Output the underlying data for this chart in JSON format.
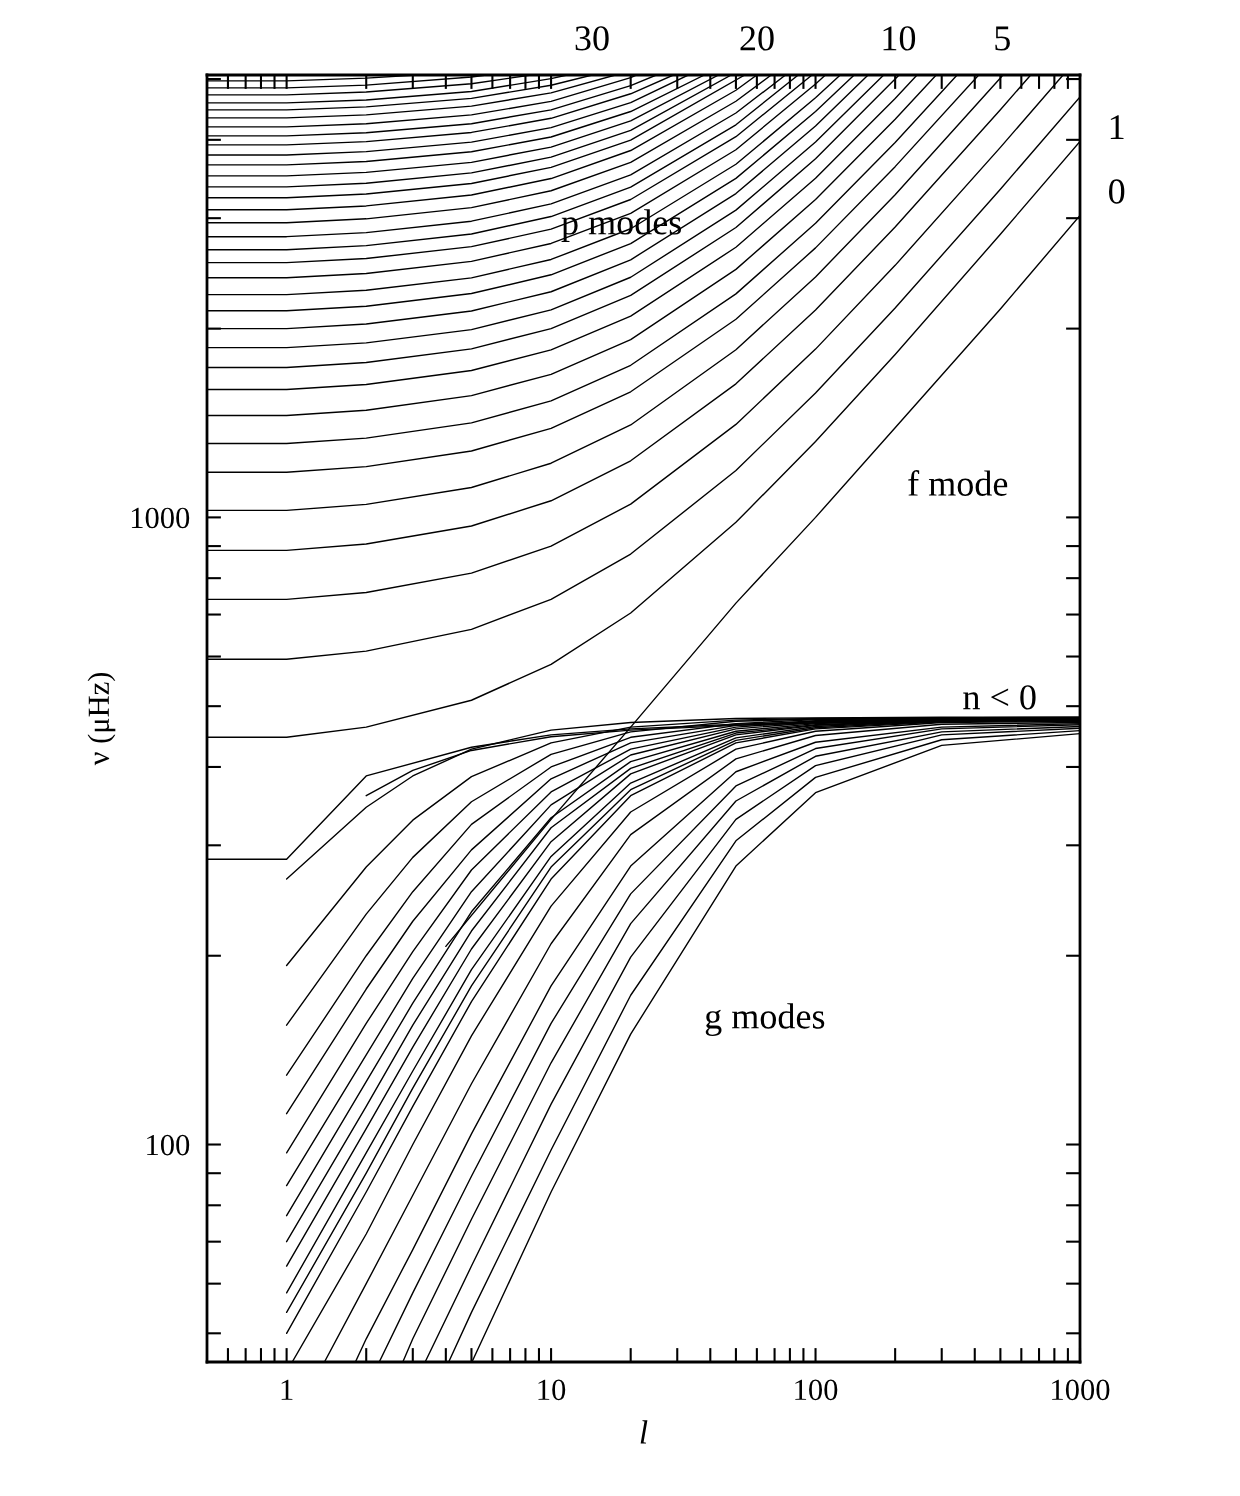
{
  "chart_data": {
    "type": "line",
    "xlabel": "l",
    "ylabel": "ν (μHz)",
    "log": "xy",
    "xlim": [
      0.5,
      1000
    ],
    "ylim": [
      45,
      5075
    ],
    "xticks": [
      {
        "value": 0.6,
        "label": null
      },
      {
        "value": 0.7,
        "label": null
      },
      {
        "value": 0.8,
        "label": null
      },
      {
        "value": 0.9,
        "label": null
      },
      1,
      {
        "value": 2,
        "label": null
      },
      {
        "value": 3,
        "label": null
      },
      {
        "value": 4,
        "label": null
      },
      {
        "value": 5,
        "label": null
      },
      {
        "value": 6,
        "label": null
      },
      {
        "value": 7,
        "label": null
      },
      {
        "value": 8,
        "label": null
      },
      {
        "value": 9,
        "label": null
      },
      10,
      {
        "value": 20,
        "label": null
      },
      {
        "value": 30,
        "label": null
      },
      {
        "value": 40,
        "label": null
      },
      {
        "value": 50,
        "label": null
      },
      {
        "value": 60,
        "label": null
      },
      {
        "value": 70,
        "label": null
      },
      {
        "value": 80,
        "label": null
      },
      {
        "value": 90,
        "label": null
      },
      100,
      {
        "value": 200,
        "label": null
      },
      {
        "value": 300,
        "label": null
      },
      {
        "value": 400,
        "label": null
      },
      {
        "value": 500,
        "label": null
      },
      {
        "value": 600,
        "label": null
      },
      {
        "value": 700,
        "label": null
      },
      {
        "value": 800,
        "label": null
      },
      {
        "value": 900,
        "label": null
      },
      1000
    ],
    "yticks": [
      {
        "value": 50,
        "label": null
      },
      {
        "value": 60,
        "label": null
      },
      {
        "value": 70,
        "label": null
      },
      {
        "value": 80,
        "label": null
      },
      {
        "value": 90,
        "label": null
      },
      100,
      {
        "value": 200,
        "label": null
      },
      {
        "value": 300,
        "label": null
      },
      {
        "value": 400,
        "label": null
      },
      {
        "value": 500,
        "label": null
      },
      {
        "value": 600,
        "label": null
      },
      {
        "value": 700,
        "label": null
      },
      {
        "value": 800,
        "label": null
      },
      {
        "value": 900,
        "label": null
      },
      1000,
      {
        "value": 2000,
        "label": null
      },
      {
        "value": 3000,
        "label": null
      },
      {
        "value": 4000,
        "label": null
      },
      {
        "value": 5000,
        "label": null
      }
    ],
    "annotations": [
      "p modes",
      "f mode",
      "g modes",
      "n < 0",
      "30",
      "20",
      "10",
      "5",
      "1",
      "0"
    ],
    "series": [
      {
        "color": "#000000",
        "x": [
          0.5,
          1,
          2,
          5,
          10,
          20,
          50,
          100,
          200,
          500,
          1000
        ],
        "values": [
          446,
          446,
          463,
          511,
          583,
          704,
          982,
          1321,
          1819,
          2828,
          3977
        ]
      },
      {
        "color": "#000000",
        "x": [
          0.5,
          1,
          2,
          5,
          10,
          20,
          50,
          100,
          200,
          500,
          1000
        ],
        "values": [
          594,
          594,
          612,
          663,
          740,
          874,
          1188,
          1579,
          2157,
          3337,
          4684
        ]
      },
      {
        "color": "#000000",
        "x": [
          0.5,
          1,
          2,
          5,
          10,
          20,
          50,
          100,
          200,
          500,
          863
        ],
        "values": [
          740,
          740,
          759,
          815,
          900,
          1050,
          1407,
          1855,
          2523,
          3891,
          5075
        ]
      },
      {
        "color": "#000000",
        "x": [
          0.5,
          1,
          2,
          5,
          10,
          20,
          50,
          100,
          200,
          500,
          651
        ],
        "values": [
          886,
          886,
          907,
          969,
          1063,
          1231,
          1633,
          2142,
          2904,
          4467,
          5075
        ]
      },
      {
        "color": "#000000",
        "x": [
          0.5,
          1,
          2,
          5,
          10,
          20,
          50,
          100,
          200,
          500,
          511
        ],
        "values": [
          1026,
          1026,
          1049,
          1116,
          1220,
          1404,
          1851,
          2418,
          3269,
          5020,
          5075
        ]
      },
      {
        "color": "#000000",
        "x": [
          0.5,
          1,
          2,
          5,
          10,
          20,
          50,
          100,
          200,
          414
        ],
        "values": [
          1180,
          1180,
          1205,
          1276,
          1387,
          1586,
          2070,
          2690,
          3625,
          5075
        ]
      },
      {
        "color": "#000000",
        "x": [
          0.5,
          1,
          2,
          5,
          10,
          20,
          50,
          100,
          200,
          343
        ],
        "values": [
          1312,
          1312,
          1338,
          1415,
          1534,
          1748,
          2272,
          2945,
          3962,
          5075
        ]
      },
      {
        "color": "#000000",
        "x": [
          0.5,
          1,
          2,
          5,
          10,
          20,
          50,
          100,
          200,
          286
        ],
        "values": [
          1454,
          1454,
          1482,
          1564,
          1691,
          1921,
          2486,
          3213,
          4315,
          5075
        ]
      },
      {
        "color": "#000000",
        "x": [
          0.5,
          1,
          2,
          5,
          10,
          20,
          50,
          100,
          200,
          242
        ],
        "values": [
          1599,
          1599,
          1629,
          1715,
          1850,
          2094,
          2696,
          3474,
          4656,
          5075
        ]
      },
      {
        "color": "#000000",
        "x": [
          0.5,
          1,
          2,
          5,
          10,
          20,
          50,
          100,
          207
        ],
        "values": [
          1734,
          1734,
          1766,
          1857,
          2000,
          2259,
          2899,
          3731,
          5075
        ]
      },
      {
        "color": "#000000",
        "x": [
          0.5,
          1,
          2,
          5,
          10,
          20,
          50,
          100,
          181
        ],
        "values": [
          1865,
          1865,
          1898,
          1993,
          2143,
          2415,
          3090,
          3968,
          5075
        ]
      },
      {
        "color": "#000000",
        "x": [
          0.5,
          1,
          2,
          5,
          10,
          20,
          50,
          100,
          158
        ],
        "values": [
          2000,
          2000,
          2034,
          2134,
          2290,
          2575,
          3284,
          4207,
          5075
        ]
      },
      {
        "color": "#000000",
        "x": [
          0.5,
          1,
          2,
          5,
          10,
          20,
          50,
          100,
          140
        ],
        "values": [
          2136,
          2136,
          2171,
          2275,
          2437,
          2733,
          3472,
          4438,
          5075
        ]
      },
      {
        "color": "#000000",
        "x": [
          0.5,
          1,
          2,
          5,
          10,
          20,
          50,
          100,
          124
        ],
        "values": [
          2266,
          2266,
          2303,
          2410,
          2578,
          2886,
          3657,
          4667,
          5075
        ]
      },
      {
        "color": "#000000",
        "x": [
          0.5,
          1,
          2,
          5,
          10,
          20,
          50,
          100,
          109
        ],
        "values": [
          2411,
          2411,
          2449,
          2560,
          2734,
          3054,
          3857,
          4911,
          5075
        ]
      },
      {
        "color": "#000000",
        "x": [
          0.5,
          1,
          2,
          5,
          10,
          20,
          50,
          97
        ],
        "values": [
          2548,
          2548,
          2587,
          2702,
          2882,
          3213,
          4046,
          5075
        ]
      },
      {
        "color": "#000000",
        "x": [
          0.5,
          1,
          2,
          5,
          10,
          20,
          50,
          86
        ],
        "values": [
          2672,
          2672,
          2713,
          2831,
          3018,
          3362,
          4227,
          5075
        ]
      },
      {
        "color": "#000000",
        "x": [
          0.5,
          1,
          2,
          5,
          10,
          20,
          50,
          77
        ],
        "values": [
          2803,
          2803,
          2845,
          2967,
          3161,
          3516,
          4414,
          5075
        ]
      },
      {
        "color": "#000000",
        "x": [
          0.5,
          1,
          2,
          5,
          10,
          20,
          50,
          68
        ],
        "values": [
          2950,
          2950,
          2993,
          3119,
          3318,
          3683,
          4609,
          5075
        ]
      },
      {
        "color": "#000000",
        "x": [
          0.5,
          1,
          2,
          5,
          10,
          20,
          50,
          60
        ],
        "values": [
          3094,
          3094,
          3138,
          3267,
          3470,
          3846,
          4799,
          5075
        ]
      },
      {
        "color": "#000000",
        "x": [
          0.5,
          1,
          2,
          5,
          10,
          20,
          54
        ],
        "values": [
          3233,
          3233,
          3278,
          3408,
          3615,
          3997,
          5075
        ]
      },
      {
        "color": "#000000",
        "x": [
          0.5,
          1,
          2,
          5,
          10,
          20,
          48
        ],
        "values": [
          3366,
          3366,
          3411,
          3543,
          3753,
          4140,
          5075
        ]
      },
      {
        "color": "#000000",
        "x": [
          0.5,
          1,
          2,
          5,
          10,
          20,
          43
        ],
        "values": [
          3504,
          3504,
          3550,
          3683,
          3895,
          4288,
          5075
        ]
      },
      {
        "color": "#000000",
        "x": [
          0.5,
          1,
          2,
          5,
          10,
          20,
          38
        ],
        "values": [
          3648,
          3648,
          3694,
          3828,
          4042,
          4438,
          5075
        ]
      },
      {
        "color": "#000000",
        "x": [
          0.5,
          1,
          2,
          5,
          10,
          20,
          33
        ],
        "values": [
          3784,
          3784,
          3830,
          3966,
          4183,
          4585,
          5075
        ]
      },
      {
        "color": "#000000",
        "x": [
          0.5,
          1,
          2,
          5,
          10,
          20,
          29
        ],
        "values": [
          3926,
          3926,
          3973,
          4110,
          4329,
          4737,
          5075
        ]
      },
      {
        "color": "#000000",
        "x": [
          0.5,
          1,
          2,
          5,
          10,
          20,
          25
        ],
        "values": [
          4058,
          4058,
          4105,
          4244,
          4466,
          4880,
          5075
        ]
      },
      {
        "color": "#000000",
        "x": [
          0.5,
          1,
          2,
          5,
          10,
          20,
          21
        ],
        "values": [
          4195,
          4195,
          4243,
          4383,
          4607,
          5026,
          5075
        ]
      },
      {
        "color": "#000000",
        "x": [
          0.5,
          1,
          2,
          5,
          10,
          17.5
        ],
        "values": [
          4336,
          4336,
          4384,
          4526,
          4753,
          5075
        ]
      },
      {
        "color": "#000000",
        "x": [
          0.5,
          1,
          2,
          5,
          10,
          14.3
        ],
        "values": [
          4465,
          4465,
          4514,
          4657,
          4887,
          5075
        ]
      },
      {
        "color": "#000000",
        "x": [
          0.5,
          1,
          2,
          5,
          10,
          11.5
        ],
        "values": [
          4581,
          4581,
          4631,
          4776,
          5009,
          5075
        ]
      },
      {
        "color": "#000000",
        "x": [
          0.5,
          1,
          2,
          5,
          8.4
        ],
        "values": [
          4718,
          4718,
          4768,
          4915,
          5075
        ]
      },
      {
        "color": "#000000",
        "x": [
          0.5,
          1,
          2,
          5,
          5.7
        ],
        "values": [
          4840,
          4840,
          4890,
          5039,
          5075
        ]
      },
      {
        "color": "#000000",
        "x": [
          0.5,
          1,
          2,
          3.1
        ],
        "values": [
          4966,
          4966,
          5017,
          5075
        ]
      },
      {
        "color": "#000000",
        "x": [
          4,
          10,
          20,
          50,
          100,
          200,
          500,
          1000
        ],
        "values": [
          207,
          330,
          463,
          730,
          1000,
          1390,
          2150,
          3030
        ]
      },
      {
        "color": "#000000",
        "x": [
          0.5,
          1,
          2,
          5,
          10,
          20,
          50,
          100,
          300,
          1000
        ],
        "values": [
          285,
          285,
          387,
          430,
          450,
          460,
          468,
          472,
          475,
          478
        ]
      },
      {
        "color": "#000000",
        "x": [
          2,
          3,
          5,
          10,
          20,
          50,
          100,
          300,
          1000
        ],
        "values": [
          360,
          395,
          425,
          447,
          458,
          466,
          470,
          473,
          476
        ]
      },
      {
        "color": "#000000",
        "x": [
          1,
          2,
          3,
          5,
          10,
          20,
          50,
          100,
          300,
          1000
        ],
        "values": [
          265,
          345,
          387,
          427,
          458,
          471,
          478,
          479,
          480,
          480
        ]
      },
      {
        "color": "#000000",
        "x": [
          1,
          2,
          3,
          5,
          10,
          20,
          50,
          100,
          300,
          1000
        ],
        "values": [
          193,
          277,
          329,
          386,
          437,
          463,
          475,
          478,
          479,
          480
        ]
      },
      {
        "color": "#000000",
        "x": [
          1,
          2,
          3,
          5,
          10,
          20,
          50,
          100,
          300,
          1000
        ],
        "values": [
          155,
          233,
          287,
          352,
          419,
          455,
          473,
          477,
          478,
          479
        ]
      },
      {
        "color": "#000000",
        "x": [
          1,
          2,
          3,
          5,
          10,
          20,
          50,
          100,
          300,
          1000
        ],
        "values": [
          129,
          200,
          253,
          324,
          400,
          446,
          469,
          476,
          478,
          479
        ]
      },
      {
        "color": "#000000",
        "x": [
          1,
          2,
          3,
          5,
          10,
          20,
          50,
          100,
          300,
          1000
        ],
        "values": [
          112,
          177,
          227,
          295,
          383,
          437,
          466,
          474,
          477,
          478
        ]
      },
      {
        "color": "#000000",
        "x": [
          1,
          2,
          3,
          5,
          10,
          20,
          50,
          100,
          300,
          1000
        ],
        "values": [
          97,
          156,
          203,
          274,
          365,
          427,
          463,
          473,
          476,
          477
        ]
      },
      {
        "color": "#000000",
        "x": [
          1,
          2,
          3,
          5,
          10,
          20,
          50,
          100,
          300,
          1000
        ],
        "values": [
          86,
          139,
          184,
          253,
          348,
          418,
          460,
          471,
          476,
          477
        ]
      },
      {
        "color": "#000000",
        "x": [
          1,
          2,
          3,
          5,
          10,
          20,
          50,
          100,
          300,
          1000
        ],
        "values": [
          77,
          126,
          168,
          235,
          332,
          408,
          456,
          469,
          476,
          477
        ]
      },
      {
        "color": "#000000",
        "x": [
          1,
          2,
          3,
          5,
          10,
          20,
          50,
          100,
          300,
          1000
        ],
        "values": [
          70,
          115,
          155,
          219,
          320,
          398,
          453,
          467,
          475,
          476
        ]
      },
      {
        "color": "#000000",
        "x": [
          1,
          2,
          3,
          5,
          10,
          20,
          50,
          100,
          300,
          1000
        ],
        "values": [
          64,
          106,
          143,
          205,
          304,
          390,
          450,
          466,
          474,
          476
        ]
      },
      {
        "color": "#000000",
        "x": [
          1,
          2,
          3,
          5,
          10,
          20,
          50,
          100,
          300,
          1000
        ],
        "values": [
          58,
          97,
          131,
          190,
          288,
          377,
          445,
          464,
          474,
          475
        ]
      },
      {
        "color": "#000000",
        "x": [
          1,
          2,
          3,
          5,
          10,
          20,
          50,
          100,
          300,
          1000
        ],
        "values": [
          54,
          90,
          123,
          179,
          277,
          368,
          441,
          462,
          473,
          475
        ]
      },
      {
        "color": "#000000",
        "x": [
          1,
          2,
          3,
          5,
          10,
          20,
          50,
          100,
          300,
          1000
        ],
        "values": [
          50,
          84,
          115,
          169,
          265,
          360,
          437,
          460,
          472,
          475
        ]
      },
      {
        "color": "#000000",
        "x": [
          1.05,
          2,
          3,
          5,
          10,
          20,
          50,
          100,
          300,
          1000
        ],
        "values": [
          45,
          72,
          100,
          149,
          240,
          339,
          427,
          456,
          471,
          473
        ]
      },
      {
        "color": "#000000",
        "x": [
          1.39,
          2,
          3,
          5,
          10,
          20,
          50,
          100,
          300,
          1000
        ],
        "values": [
          45,
          60,
          83,
          125,
          209,
          312,
          412,
          449,
          468,
          471
        ]
      },
      {
        "color": "#000000",
        "x": [
          1.82,
          2,
          3,
          5,
          10,
          20,
          50,
          100,
          300,
          1000
        ],
        "values": [
          45,
          49,
          68,
          104,
          179,
          278,
          393,
          438,
          463,
          469
        ]
      },
      {
        "color": "#000000",
        "x": [
          2.24,
          3,
          5,
          10,
          20,
          50,
          100,
          300,
          1000
        ],
        "values": [
          45,
          58,
          89,
          156,
          251,
          373,
          428,
          460,
          467
        ]
      },
      {
        "color": "#000000",
        "x": [
          2.75,
          3,
          5,
          10,
          20,
          50,
          100,
          300,
          1000
        ],
        "values": [
          45,
          49,
          76,
          135,
          225,
          353,
          416,
          455,
          464
        ]
      },
      {
        "color": "#000000",
        "x": [
          3.34,
          5,
          10,
          20,
          50,
          100,
          300,
          1000
        ],
        "values": [
          45,
          64,
          116,
          199,
          330,
          402,
          450,
          461
        ]
      },
      {
        "color": "#000000",
        "x": [
          4.1,
          5,
          10,
          20,
          50,
          100,
          300,
          1000
        ],
        "values": [
          45,
          54,
          98,
          173,
          305,
          385,
          442,
          457
        ]
      },
      {
        "color": "#000000",
        "x": [
          5.02,
          10,
          20,
          50,
          100,
          300,
          1000
        ],
        "values": [
          45,
          84,
          150,
          278,
          364,
          433,
          452
        ]
      }
    ]
  }
}
